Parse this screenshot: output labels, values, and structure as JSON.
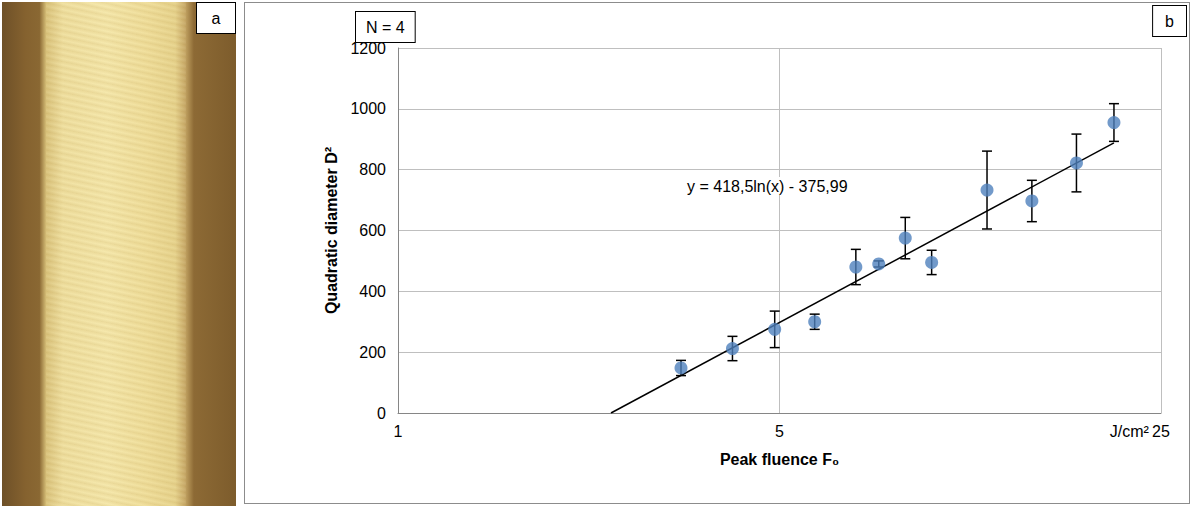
{
  "photo_panel": {
    "label": "a"
  },
  "chart_data": {
    "type": "scatter",
    "panel_label": "b",
    "note_box": "N = 4",
    "x_label": "Peak fluence F₀",
    "x_unit": "J/cm²",
    "y_label": "Quadratic diameter D²",
    "x": [
      3.3,
      4.1,
      4.9,
      5.8,
      6.9,
      7.6,
      8.5,
      9.5,
      12,
      14.5,
      17.5,
      20.5
    ],
    "values": [
      148,
      212,
      275,
      300,
      480,
      490,
      575,
      495,
      733,
      697,
      822,
      955
    ],
    "errors": [
      25,
      40,
      60,
      25,
      58,
      10,
      68,
      40,
      128,
      68,
      95,
      62
    ],
    "color": "#4f81bd",
    "marker": "circle",
    "trendline": {
      "label": "y = 418,5ln(x) - 375,99",
      "x": [
        2.456,
        20.5
      ],
      "values": [
        0,
        888
      ],
      "color": "#000000"
    },
    "xlim": [
      1,
      25
    ],
    "xticks": [
      1,
      5,
      25
    ],
    "ylim": [
      0,
      1200
    ],
    "yticks": [
      0,
      200,
      400,
      600,
      800,
      1000,
      1200
    ],
    "log": "x",
    "grid": true
  }
}
